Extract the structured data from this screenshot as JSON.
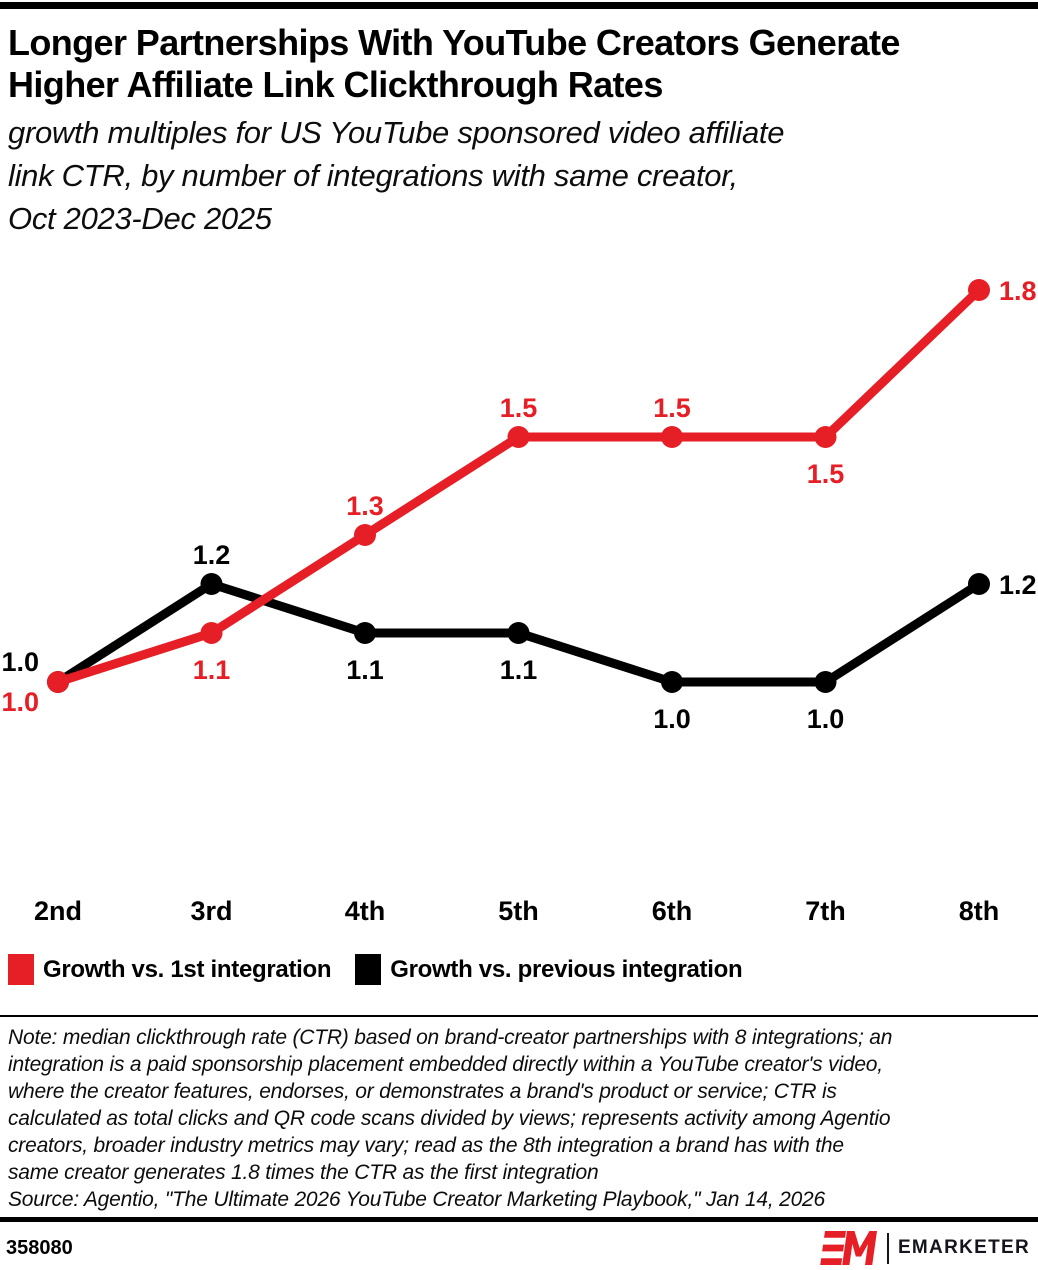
{
  "header": {
    "title_lines": [
      "Longer Partnerships With YouTube Creators Generate",
      "Higher Affiliate Link Clickthrough Rates"
    ],
    "subtitle_lines": [
      "growth multiples for US YouTube sponsored video affiliate",
      "link CTR, by number of integrations with same creator,",
      "Oct 2023-Dec 2025"
    ]
  },
  "chart_data": {
    "type": "line",
    "categories": [
      "2nd",
      "3rd",
      "4th",
      "5th",
      "6th",
      "7th",
      "8th"
    ],
    "series": [
      {
        "id": "vs-1st",
        "name": "Growth vs. 1st integration",
        "color": "#e61e25",
        "values": [
          1.0,
          1.1,
          1.3,
          1.5,
          1.5,
          1.5,
          1.8
        ],
        "label_positions": [
          "left-below",
          "below",
          "above",
          "above",
          "above",
          "below",
          "right"
        ]
      },
      {
        "id": "vs-previous",
        "name": "Growth vs. previous integration",
        "color": "#000000",
        "values": [
          1.0,
          1.2,
          1.1,
          1.1,
          1.0,
          1.0,
          1.2
        ],
        "label_positions": [
          "left-above",
          "above",
          "below",
          "below",
          "below",
          "below",
          "right"
        ]
      }
    ],
    "value_range": [
      1.0,
      1.8
    ],
    "gridlines": false,
    "legend_position": "bottom",
    "data_labels": true
  },
  "note_lines": [
    "Note: median clickthrough rate (CTR) based on brand-creator partnerships with 8 integrations; an",
    "integration is a paid sponsorship placement embedded directly within a YouTube creator's video,",
    "where the creator features, endorses, or demonstrates a brand's product or service; CTR is",
    "calculated as total clicks and QR code scans divided by views; represents activity among Agentio",
    "creators, broader industry metrics may vary; read as the 8th integration a brand has with the",
    "same creator generates 1.8 times the CTR as the first integration"
  ],
  "source": "Source: Agentio, \"The Ultimate 2026 YouTube Creator Marketing Playbook,\" Jan 14, 2026",
  "footer": {
    "chart_id": "358080",
    "brand": "EMARKETER"
  },
  "colors": {
    "accent_red": "#e61e25",
    "black": "#000000",
    "logo_text": "#15151e"
  }
}
